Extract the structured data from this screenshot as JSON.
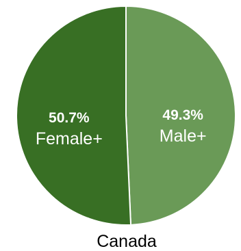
{
  "chart_data": {
    "type": "pie",
    "title": "Canada",
    "slices": [
      {
        "label": "Male+",
        "value": 49.3,
        "value_label": "49.3%",
        "color": "#6a9a57"
      },
      {
        "label": "Female+",
        "value": 50.7,
        "value_label": "50.7%",
        "color": "#386f24"
      }
    ],
    "start": "top",
    "direction": "clockwise",
    "slice_border_color": "#ffffff",
    "legend": "none",
    "grid": false
  }
}
